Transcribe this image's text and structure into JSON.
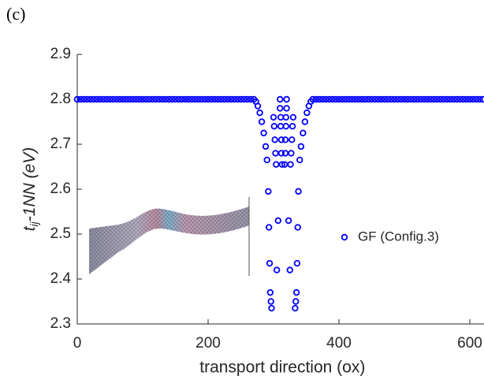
{
  "panel_label": "(c)",
  "chart_data": {
    "type": "scatter",
    "xlabel": "transport direction (ox)",
    "ylabel": [
      "t",
      "ij",
      "-1NN (eV)"
    ],
    "xlim": [
      0,
      620
    ],
    "ylim": [
      2.3,
      2.9
    ],
    "xticks": [
      0,
      200,
      400,
      600
    ],
    "yticks": [
      2.3,
      2.4,
      2.5,
      2.6,
      2.7,
      2.8,
      2.9
    ],
    "legend": "right",
    "series": [
      {
        "name": "GF (Config.3)",
        "color": "#0000ff",
        "x": [
          0,
          5,
          10,
          15,
          20,
          25,
          30,
          35,
          40,
          45,
          50,
          55,
          60,
          65,
          70,
          75,
          80,
          85,
          90,
          95,
          100,
          105,
          110,
          115,
          120,
          125,
          130,
          135,
          140,
          145,
          150,
          155,
          160,
          165,
          170,
          175,
          180,
          185,
          190,
          195,
          200,
          205,
          210,
          215,
          220,
          225,
          230,
          235,
          240,
          245,
          250,
          255,
          260,
          265,
          270,
          273,
          276,
          279,
          282,
          285,
          288,
          290,
          292,
          293,
          294,
          295,
          296,
          297,
          300,
          301,
          302,
          303,
          304,
          305,
          307,
          310,
          310,
          311,
          311,
          312,
          312,
          313,
          360,
          357,
          354,
          351,
          348,
          345,
          342,
          340,
          338,
          337,
          336,
          335,
          334,
          333,
          330,
          329,
          328,
          327,
          326,
          325,
          323,
          320,
          320,
          319,
          319,
          318,
          318,
          317,
          365,
          370,
          375,
          380,
          385,
          390,
          395,
          400,
          405,
          410,
          415,
          420,
          425,
          430,
          435,
          440,
          445,
          450,
          455,
          460,
          465,
          470,
          475,
          480,
          485,
          490,
          495,
          500,
          505,
          510,
          515,
          520,
          525,
          530,
          535,
          540,
          545,
          550,
          555,
          560,
          565,
          570,
          575,
          580,
          585,
          590,
          595,
          600,
          605,
          610,
          615,
          620
        ],
        "values": [
          2.8,
          2.8,
          2.8,
          2.8,
          2.8,
          2.8,
          2.8,
          2.8,
          2.8,
          2.8,
          2.8,
          2.8,
          2.8,
          2.8,
          2.8,
          2.8,
          2.8,
          2.8,
          2.8,
          2.8,
          2.8,
          2.8,
          2.8,
          2.8,
          2.8,
          2.8,
          2.8,
          2.8,
          2.8,
          2.8,
          2.8,
          2.8,
          2.8,
          2.8,
          2.8,
          2.8,
          2.8,
          2.8,
          2.8,
          2.8,
          2.8,
          2.8,
          2.8,
          2.8,
          2.8,
          2.8,
          2.8,
          2.8,
          2.8,
          2.8,
          2.8,
          2.8,
          2.8,
          2.8,
          2.8,
          2.795,
          2.785,
          2.77,
          2.75,
          2.725,
          2.695,
          2.665,
          2.595,
          2.515,
          2.435,
          2.37,
          2.35,
          2.335,
          2.76,
          2.74,
          2.71,
          2.68,
          2.655,
          2.42,
          2.53,
          2.8,
          2.78,
          2.76,
          2.74,
          2.71,
          2.68,
          2.655,
          2.8,
          2.795,
          2.785,
          2.77,
          2.75,
          2.725,
          2.695,
          2.665,
          2.595,
          2.515,
          2.435,
          2.37,
          2.35,
          2.335,
          2.76,
          2.74,
          2.71,
          2.68,
          2.655,
          2.42,
          2.53,
          2.8,
          2.78,
          2.76,
          2.74,
          2.71,
          2.68,
          2.655,
          2.8,
          2.8,
          2.8,
          2.8,
          2.8,
          2.8,
          2.8,
          2.8,
          2.8,
          2.8,
          2.8,
          2.8,
          2.8,
          2.8,
          2.8,
          2.8,
          2.8,
          2.8,
          2.8,
          2.8,
          2.8,
          2.8,
          2.8,
          2.8,
          2.8,
          2.8,
          2.8,
          2.8,
          2.8,
          2.8,
          2.8,
          2.8,
          2.8,
          2.8,
          2.8,
          2.8,
          2.8,
          2.8,
          2.8,
          2.8,
          2.8,
          2.8,
          2.8,
          2.8,
          2.8,
          2.8,
          2.8,
          2.8,
          2.8,
          2.8,
          2.8,
          2.8
        ]
      }
    ]
  }
}
